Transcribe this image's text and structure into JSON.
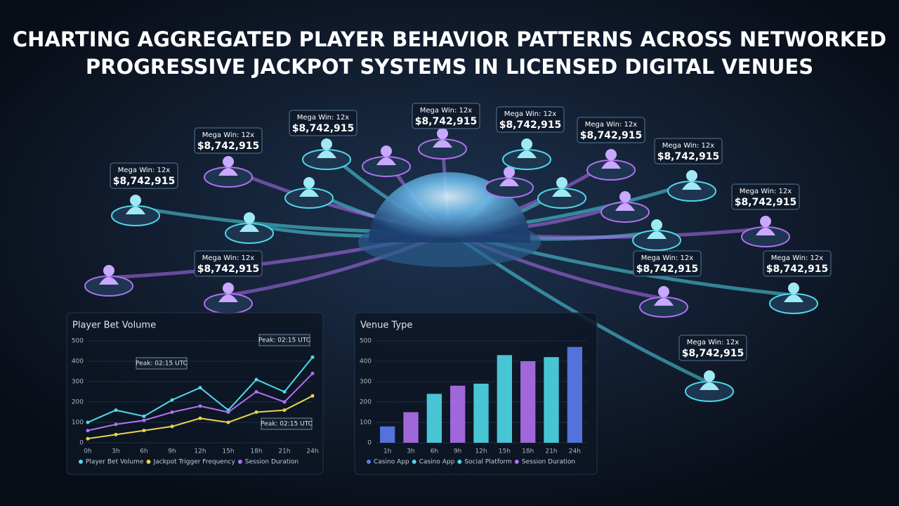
{
  "title": "CHARTING AGGREGATED PLAYER BEHAVIOR PATTERNS ACROSS NETWORKED PROGRESSIVE JACKPOT SYSTEMS IN LICENSED DIGITAL VENUES",
  "nodes": [
    {
      "label": "Mega Win: 12x",
      "amount": "$8,742,915"
    },
    {
      "label": "Mega Win: 12x",
      "amount": "$8,742,915"
    },
    {
      "label": "Mega Win: 12x",
      "amount": "$8,742,915"
    },
    {
      "label": "Mega Win: 12x",
      "amount": "$8,742,915"
    },
    {
      "label": "Mega Win: 12x",
      "amount": "$8,742,915"
    },
    {
      "label": "Mega Win: 12x",
      "amount": "$8,742,915"
    },
    {
      "label": "Mega Win: 12x",
      "amount": "$8,742,915"
    },
    {
      "label": "Mega Win: 12x",
      "amount": "$8,742,915"
    },
    {
      "label": "Mega Win: 12x",
      "amount": "$8,742,915"
    },
    {
      "label": "Mega Win: 12x",
      "amount": "$8,742,915"
    },
    {
      "label": "Mega Win: 12x",
      "amount": "$8,742,915"
    },
    {
      "label": "Mega Win: 12x",
      "amount": "$8,742,915"
    }
  ],
  "chart_data": [
    {
      "type": "line",
      "title": "Player Bet Volume",
      "categories": [
        "0h",
        "3h",
        "6h",
        "9h",
        "12h",
        "15h",
        "18h",
        "21h",
        "24h"
      ],
      "series": [
        {
          "name": "Player Bet Volume",
          "color": "#4fd8e8",
          "values": [
            100,
            160,
            130,
            210,
            270,
            160,
            310,
            250,
            420
          ]
        },
        {
          "name": "Jackpot Trigger Frequency",
          "color": "#e8d24f",
          "values": [
            20,
            40,
            60,
            80,
            120,
            100,
            150,
            160,
            230
          ]
        },
        {
          "name": "Session Duration",
          "color": "#b070f0",
          "values": [
            60,
            90,
            110,
            150,
            180,
            150,
            250,
            200,
            340
          ]
        }
      ],
      "annotations": [
        "Peak: 02:15 UTC",
        "Peak: 02:15 UTC",
        "Peak: 02:15 UTC"
      ],
      "ylim": [
        0,
        500
      ],
      "yticks": [
        0,
        100,
        200,
        300,
        400,
        500
      ]
    },
    {
      "type": "bar",
      "title": "Venue Type",
      "categories": [
        "1h",
        "3h",
        "6h",
        "9h",
        "12h",
        "15h",
        "18h",
        "21h",
        "24h"
      ],
      "values": [
        80,
        150,
        240,
        280,
        290,
        430,
        400,
        420,
        470
      ],
      "colors": [
        "#5b7cf0",
        "#b070f0",
        "#4fd8e8",
        "#b070f0",
        "#4fd8e8",
        "#4fd8e8",
        "#b070f0",
        "#4fd8e8",
        "#5b7cf0"
      ],
      "legend": [
        {
          "name": "Casino App",
          "color": "#5b7cf0"
        },
        {
          "name": "Casino App",
          "color": "#4fd8e8"
        },
        {
          "name": "Social Platform",
          "color": "#4fd8e8"
        },
        {
          "name": "Session Duration",
          "color": "#b070f0"
        }
      ],
      "ylim": [
        0,
        500
      ],
      "yticks": [
        0,
        100,
        200,
        300,
        400,
        500
      ]
    }
  ]
}
